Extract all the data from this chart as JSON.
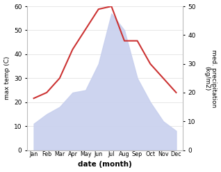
{
  "months": [
    "Jan",
    "Feb",
    "Mar",
    "Apr",
    "May",
    "Jun",
    "Jul",
    "Aug",
    "Sep",
    "Oct",
    "Nov",
    "Dec"
  ],
  "x": [
    0,
    1,
    2,
    3,
    4,
    5,
    6,
    7,
    8,
    9,
    10,
    11
  ],
  "temp": [
    11,
    15,
    18,
    24,
    25,
    36,
    57,
    50,
    30,
    20,
    12,
    8
  ],
  "precip": [
    18,
    20,
    25,
    35,
    42,
    49,
    50,
    38,
    38,
    30,
    25,
    20
  ],
  "temp_ylim": [
    0,
    60
  ],
  "precip_ylim": [
    0,
    50
  ],
  "temp_fill_color": "#c8d0ee",
  "precip_color": "#cc3333",
  "ylabel_left": "max temp (C)",
  "ylabel_right": "med. precipitation\n(kg/m2)",
  "xlabel": "date (month)",
  "bg_color": "#ffffff",
  "yticks_left": [
    0,
    10,
    20,
    30,
    40,
    50,
    60
  ],
  "yticks_right": [
    0,
    10,
    20,
    30,
    40,
    50
  ]
}
